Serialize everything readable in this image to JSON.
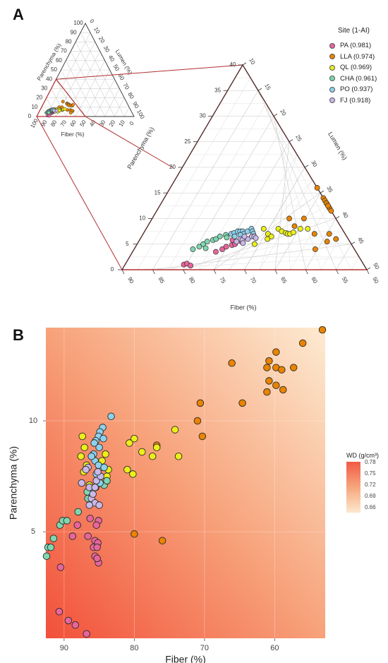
{
  "panel_a": {
    "label": "A",
    "legend": {
      "title": "Site (1-AI)",
      "entries": [
        {
          "label": "PA (0.981)",
          "color": "#e8659c"
        },
        {
          "label": "LLA (0.974)",
          "color": "#e98300"
        },
        {
          "label": "QL (0.969)",
          "color": "#ecef18"
        },
        {
          "label": "CHA (0.961)",
          "color": "#7fd6b0"
        },
        {
          "label": "PO (0.937)",
          "color": "#8dd1ee"
        },
        {
          "label": "FJ (0.918)",
          "color": "#c9b9e8"
        }
      ]
    }
  },
  "panel_b": {
    "label": "B",
    "xlabel": "Fiber (%)",
    "ylabel": "Parenchyma (%)",
    "legend_title": "WD (g/cm³)",
    "legend_ticks": [
      "0.78",
      "0.75",
      "0.72",
      "0.69",
      "0.66"
    ]
  },
  "chart_data": [
    {
      "type": "ternary scatter (overview)",
      "axes": {
        "parenchyma": "Parenchyma (%)",
        "lumen": "Lumen (%)",
        "fiber": "Fiber (%)"
      },
      "ticks": [
        0,
        10,
        20,
        30,
        40,
        50,
        60,
        70,
        80,
        90,
        100
      ],
      "zoom_region": {
        "fiber": [
          50,
          100
        ],
        "parenchyma": [
          0,
          40
        ],
        "lumen": [
          0,
          50
        ]
      }
    },
    {
      "type": "ternary scatter (zoomed)",
      "axes": {
        "parenchyma": "Parenchyma (%)",
        "lumen": "Lumen (%)",
        "fiber": "Fiber (%)"
      },
      "parenchyma_ticks": [
        0,
        5,
        10,
        15,
        20,
        25,
        30,
        35,
        40
      ],
      "lumen_ticks": [
        10,
        15,
        20,
        25,
        30,
        35,
        40,
        45,
        50
      ],
      "fiber_ticks": [
        90,
        85,
        80,
        75,
        70,
        65,
        60,
        55,
        50
      ],
      "series": [
        {
          "name": "PA (0.981)",
          "color": "#e8659c",
          "points": [
            [
              88,
              1
            ],
            [
              87.5,
              1.2
            ],
            [
              86.5,
              0.8
            ],
            [
              83,
              3.5
            ],
            [
              82,
              4
            ],
            [
              81.5,
              4.5
            ],
            [
              80.5,
              4.8
            ],
            [
              80,
              5
            ],
            [
              79,
              5.5
            ],
            [
              81,
              5.8
            ],
            [
              79.5,
              6.5
            ]
          ]
        },
        {
          "name": "LLA (0.974)",
          "color": "#e98300",
          "points": [
            [
              65,
              16
            ],
            [
              62,
              14
            ],
            [
              61.5,
              13.5
            ],
            [
              61,
              13
            ],
            [
              62,
              13
            ],
            [
              60.5,
              13
            ],
            [
              60,
              12.5
            ],
            [
              61,
              12
            ],
            [
              59,
              12
            ],
            [
              58,
              11.5
            ],
            [
              56.5,
              12.5
            ],
            [
              72,
              10
            ],
            [
              70,
              8.5
            ],
            [
              65,
              7
            ],
            [
              62,
              7
            ],
            [
              60,
              6
            ],
            [
              61.5,
              5.5
            ],
            [
              63,
              4
            ],
            [
              69,
              10
            ]
          ]
        },
        {
          "name": "QL (0.969)",
          "color": "#ecef18",
          "points": [
            [
              76,
              8
            ],
            [
              73,
              8
            ],
            [
              72,
              7.5
            ],
            [
              71,
              7.2
            ],
            [
              70.5,
              7
            ],
            [
              70,
              7
            ],
            [
              69.5,
              7.3
            ],
            [
              68.5,
              8
            ],
            [
              67,
              8
            ],
            [
              74,
              6
            ],
            [
              76,
              5
            ],
            [
              74.5,
              7
            ],
            [
              73.5,
              6.5
            ]
          ]
        },
        {
          "name": "CHA (0.961)",
          "color": "#7fd6b0",
          "points": [
            [
              88,
              4
            ],
            [
              87,
              4.5
            ],
            [
              86.5,
              5
            ],
            [
              86,
              5.5
            ],
            [
              85,
              5.8
            ],
            [
              84.5,
              6
            ],
            [
              84,
              6.5
            ],
            [
              83,
              6.8
            ],
            [
              85.5,
              4.2
            ],
            [
              82.5,
              6.3
            ]
          ]
        },
        {
          "name": "PO (0.937)",
          "color": "#8dd1ee",
          "points": [
            [
              82,
              7
            ],
            [
              81.5,
              7.2
            ],
            [
              81,
              7.5
            ],
            [
              80.5,
              7.5
            ],
            [
              80,
              7.5
            ],
            [
              79.5,
              7
            ],
            [
              79,
              7.5
            ],
            [
              78.5,
              8
            ],
            [
              78,
              7.5
            ],
            [
              77.5,
              7
            ],
            [
              81,
              6.5
            ],
            [
              80,
              6.8
            ]
          ]
        },
        {
          "name": "FJ (0.918)",
          "color": "#c9b9e8",
          "points": [
            [
              80,
              5.5
            ],
            [
              79.5,
              6
            ],
            [
              79,
              5.8
            ],
            [
              78,
              6
            ],
            [
              77.5,
              6.5
            ],
            [
              77,
              6.5
            ],
            [
              78.5,
              5.2
            ],
            [
              76.5,
              6.2
            ],
            [
              79,
              6.5
            ]
          ]
        }
      ]
    },
    {
      "type": "scatter",
      "xlabel": "Fiber (%)",
      "ylabel": "Parenchyma (%)",
      "x_reversed": true,
      "xlim": [
        92.6,
        52.8
      ],
      "ylim": [
        0.2,
        14.2
      ],
      "x_ticks": [
        90,
        80,
        70,
        60
      ],
      "y_ticks": [
        5,
        10
      ],
      "background_gradient": "WD (g/cm³)",
      "series": [
        {
          "name": "PA (0.981)",
          "color": "#e8659c",
          "points": [
            [
              90.7,
              1.4
            ],
            [
              89.4,
              1.0
            ],
            [
              88.4,
              0.8
            ],
            [
              86.8,
              0.4
            ],
            [
              90.5,
              3.4
            ],
            [
              88.8,
              4.8
            ],
            [
              88.1,
              5.3
            ],
            [
              86.6,
              4.8
            ],
            [
              85.6,
              4.6
            ],
            [
              85.2,
              4.5
            ],
            [
              85.8,
              4.3
            ],
            [
              85.3,
              4.3
            ],
            [
              85.6,
              3.9
            ],
            [
              85.1,
              3.6
            ],
            [
              85.3,
              3.8
            ],
            [
              86.3,
              5.6
            ],
            [
              85.1,
              5.5
            ],
            [
              85.4,
              5.3
            ]
          ]
        },
        {
          "name": "LLA (0.974)",
          "color": "#e98300",
          "points": [
            [
              53.2,
              14.1
            ],
            [
              56.0,
              13.5
            ],
            [
              59.8,
              13.1
            ],
            [
              60.8,
              12.7
            ],
            [
              61.1,
              12.4
            ],
            [
              59.8,
              12.4
            ],
            [
              59.0,
              12.3
            ],
            [
              57.3,
              12.4
            ],
            [
              60.8,
              11.8
            ],
            [
              59.8,
              11.6
            ],
            [
              58.8,
              11.4
            ],
            [
              61.1,
              11.3
            ],
            [
              66.1,
              12.6
            ],
            [
              64.6,
              10.8
            ],
            [
              70.6,
              10.8
            ],
            [
              71.0,
              10.0
            ],
            [
              70.3,
              9.3
            ],
            [
              76.8,
              8.9
            ],
            [
              80.0,
              4.9
            ],
            [
              76.0,
              4.6
            ]
          ]
        },
        {
          "name": "QL (0.969)",
          "color": "#ecef18",
          "points": [
            [
              87.4,
              9.3
            ],
            [
              87.1,
              8.8
            ],
            [
              87.6,
              8.4
            ],
            [
              86.8,
              8.0
            ],
            [
              87.2,
              7.7
            ],
            [
              86.4,
              7.1
            ],
            [
              84.1,
              8.5
            ],
            [
              83.7,
              7.8
            ],
            [
              83.9,
              7.5
            ],
            [
              84.6,
              8.2
            ],
            [
              84.8,
              7.9
            ],
            [
              80.7,
              9.0
            ],
            [
              81.0,
              7.8
            ],
            [
              80.2,
              7.6
            ],
            [
              80.0,
              9.2
            ],
            [
              78.9,
              8.6
            ],
            [
              77.4,
              8.4
            ],
            [
              76.8,
              8.8
            ],
            [
              74.2,
              9.6
            ],
            [
              73.7,
              8.4
            ]
          ]
        },
        {
          "name": "CHA (0.961)",
          "color": "#7fd6b0",
          "points": [
            [
              92.5,
              3.9
            ],
            [
              92.3,
              4.3
            ],
            [
              91.9,
              4.3
            ],
            [
              91.5,
              4.7
            ],
            [
              90.6,
              5.3
            ],
            [
              90.2,
              5.5
            ],
            [
              89.6,
              5.5
            ],
            [
              88.0,
              5.9
            ],
            [
              86.6,
              6.5
            ],
            [
              86.1,
              6.8
            ],
            [
              85.5,
              7.0
            ],
            [
              84.9,
              7.2
            ],
            [
              84.3,
              7.1
            ],
            [
              83.9,
              7.3
            ],
            [
              86.7,
              6.8
            ]
          ]
        },
        {
          "name": "PO (0.937)",
          "color": "#8dd1ee",
          "points": [
            [
              83.3,
              10.2
            ],
            [
              84.5,
              9.7
            ],
            [
              84.9,
              9.5
            ],
            [
              85.1,
              9.3
            ],
            [
              85.5,
              9.1
            ],
            [
              85.7,
              9.0
            ],
            [
              84.4,
              9.2
            ],
            [
              85.0,
              8.8
            ],
            [
              85.8,
              8.5
            ],
            [
              85.6,
              8.2
            ],
            [
              86.1,
              8.4
            ],
            [
              85.1,
              8.0
            ],
            [
              84.3,
              7.9
            ],
            [
              85.4,
              7.6
            ],
            [
              84.9,
              7.2
            ]
          ]
        },
        {
          "name": "FJ (0.918)",
          "color": "#c9b9e8",
          "points": [
            [
              86.6,
              7.9
            ],
            [
              86.9,
              7.8
            ],
            [
              87.5,
              7.2
            ],
            [
              86.4,
              7.0
            ],
            [
              86.1,
              6.5
            ],
            [
              85.9,
              6.7
            ],
            [
              85.6,
              6.3
            ],
            [
              85.0,
              6.2
            ],
            [
              86.4,
              6.2
            ],
            [
              85.4,
              7.3
            ],
            [
              84.8,
              7.5
            ],
            [
              85.2,
              7.7
            ],
            [
              85.6,
              7.0
            ]
          ]
        }
      ]
    }
  ]
}
